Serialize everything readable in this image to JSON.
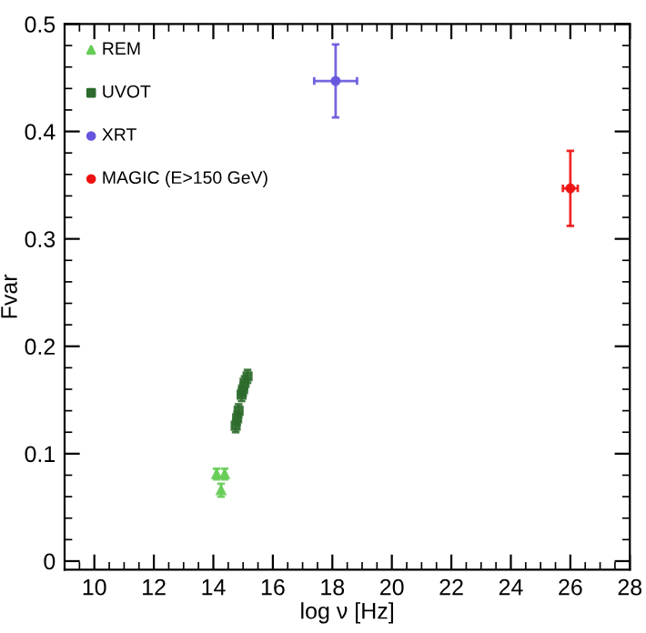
{
  "chart_data": {
    "type": "scatter",
    "xlabel": "log ν [Hz]",
    "ylabel": "Fvar",
    "xlim": [
      9,
      28
    ],
    "xticks": [
      10,
      12,
      14,
      16,
      18,
      20,
      22,
      24,
      26,
      28
    ],
    "ylim": [
      -0.008,
      0.5
    ],
    "yticks": [
      0,
      0.1,
      0.2,
      0.3,
      0.4,
      0.5
    ],
    "grid": false,
    "legend": "top left",
    "series": [
      {
        "name": "REM",
        "color": "#66cc55",
        "marker": "triangle",
        "x": [
          14.11,
          14.38,
          14.26
        ],
        "values": [
          0.081,
          0.081,
          0.066
        ],
        "errors": [
          0.005,
          0.005,
          0.006
        ]
      },
      {
        "name": "UVOT",
        "color": "#2e6b2e",
        "marker": "square",
        "x": [
          14.75,
          14.8,
          14.85,
          14.95,
          15.0,
          15.05,
          15.15
        ],
        "values": [
          0.126,
          0.133,
          0.14,
          0.155,
          0.16,
          0.166,
          0.172
        ],
        "errors": [
          0.006,
          0.006,
          0.006,
          0.006,
          0.006,
          0.006,
          0.006
        ]
      },
      {
        "name": "XRT",
        "color": "#6655dd",
        "marker": "circle",
        "x": [
          18.11
        ],
        "values": [
          0.447
        ],
        "errors": [
          0.034
        ],
        "xerrors": [
          0.72
        ]
      },
      {
        "name": "MAGIC (E>150 GeV)",
        "color": "#ee1111",
        "marker": "circle",
        "x": [
          26.0
        ],
        "values": [
          0.347
        ],
        "errors": [
          0.035
        ],
        "xerrors": [
          0.25
        ]
      }
    ]
  }
}
